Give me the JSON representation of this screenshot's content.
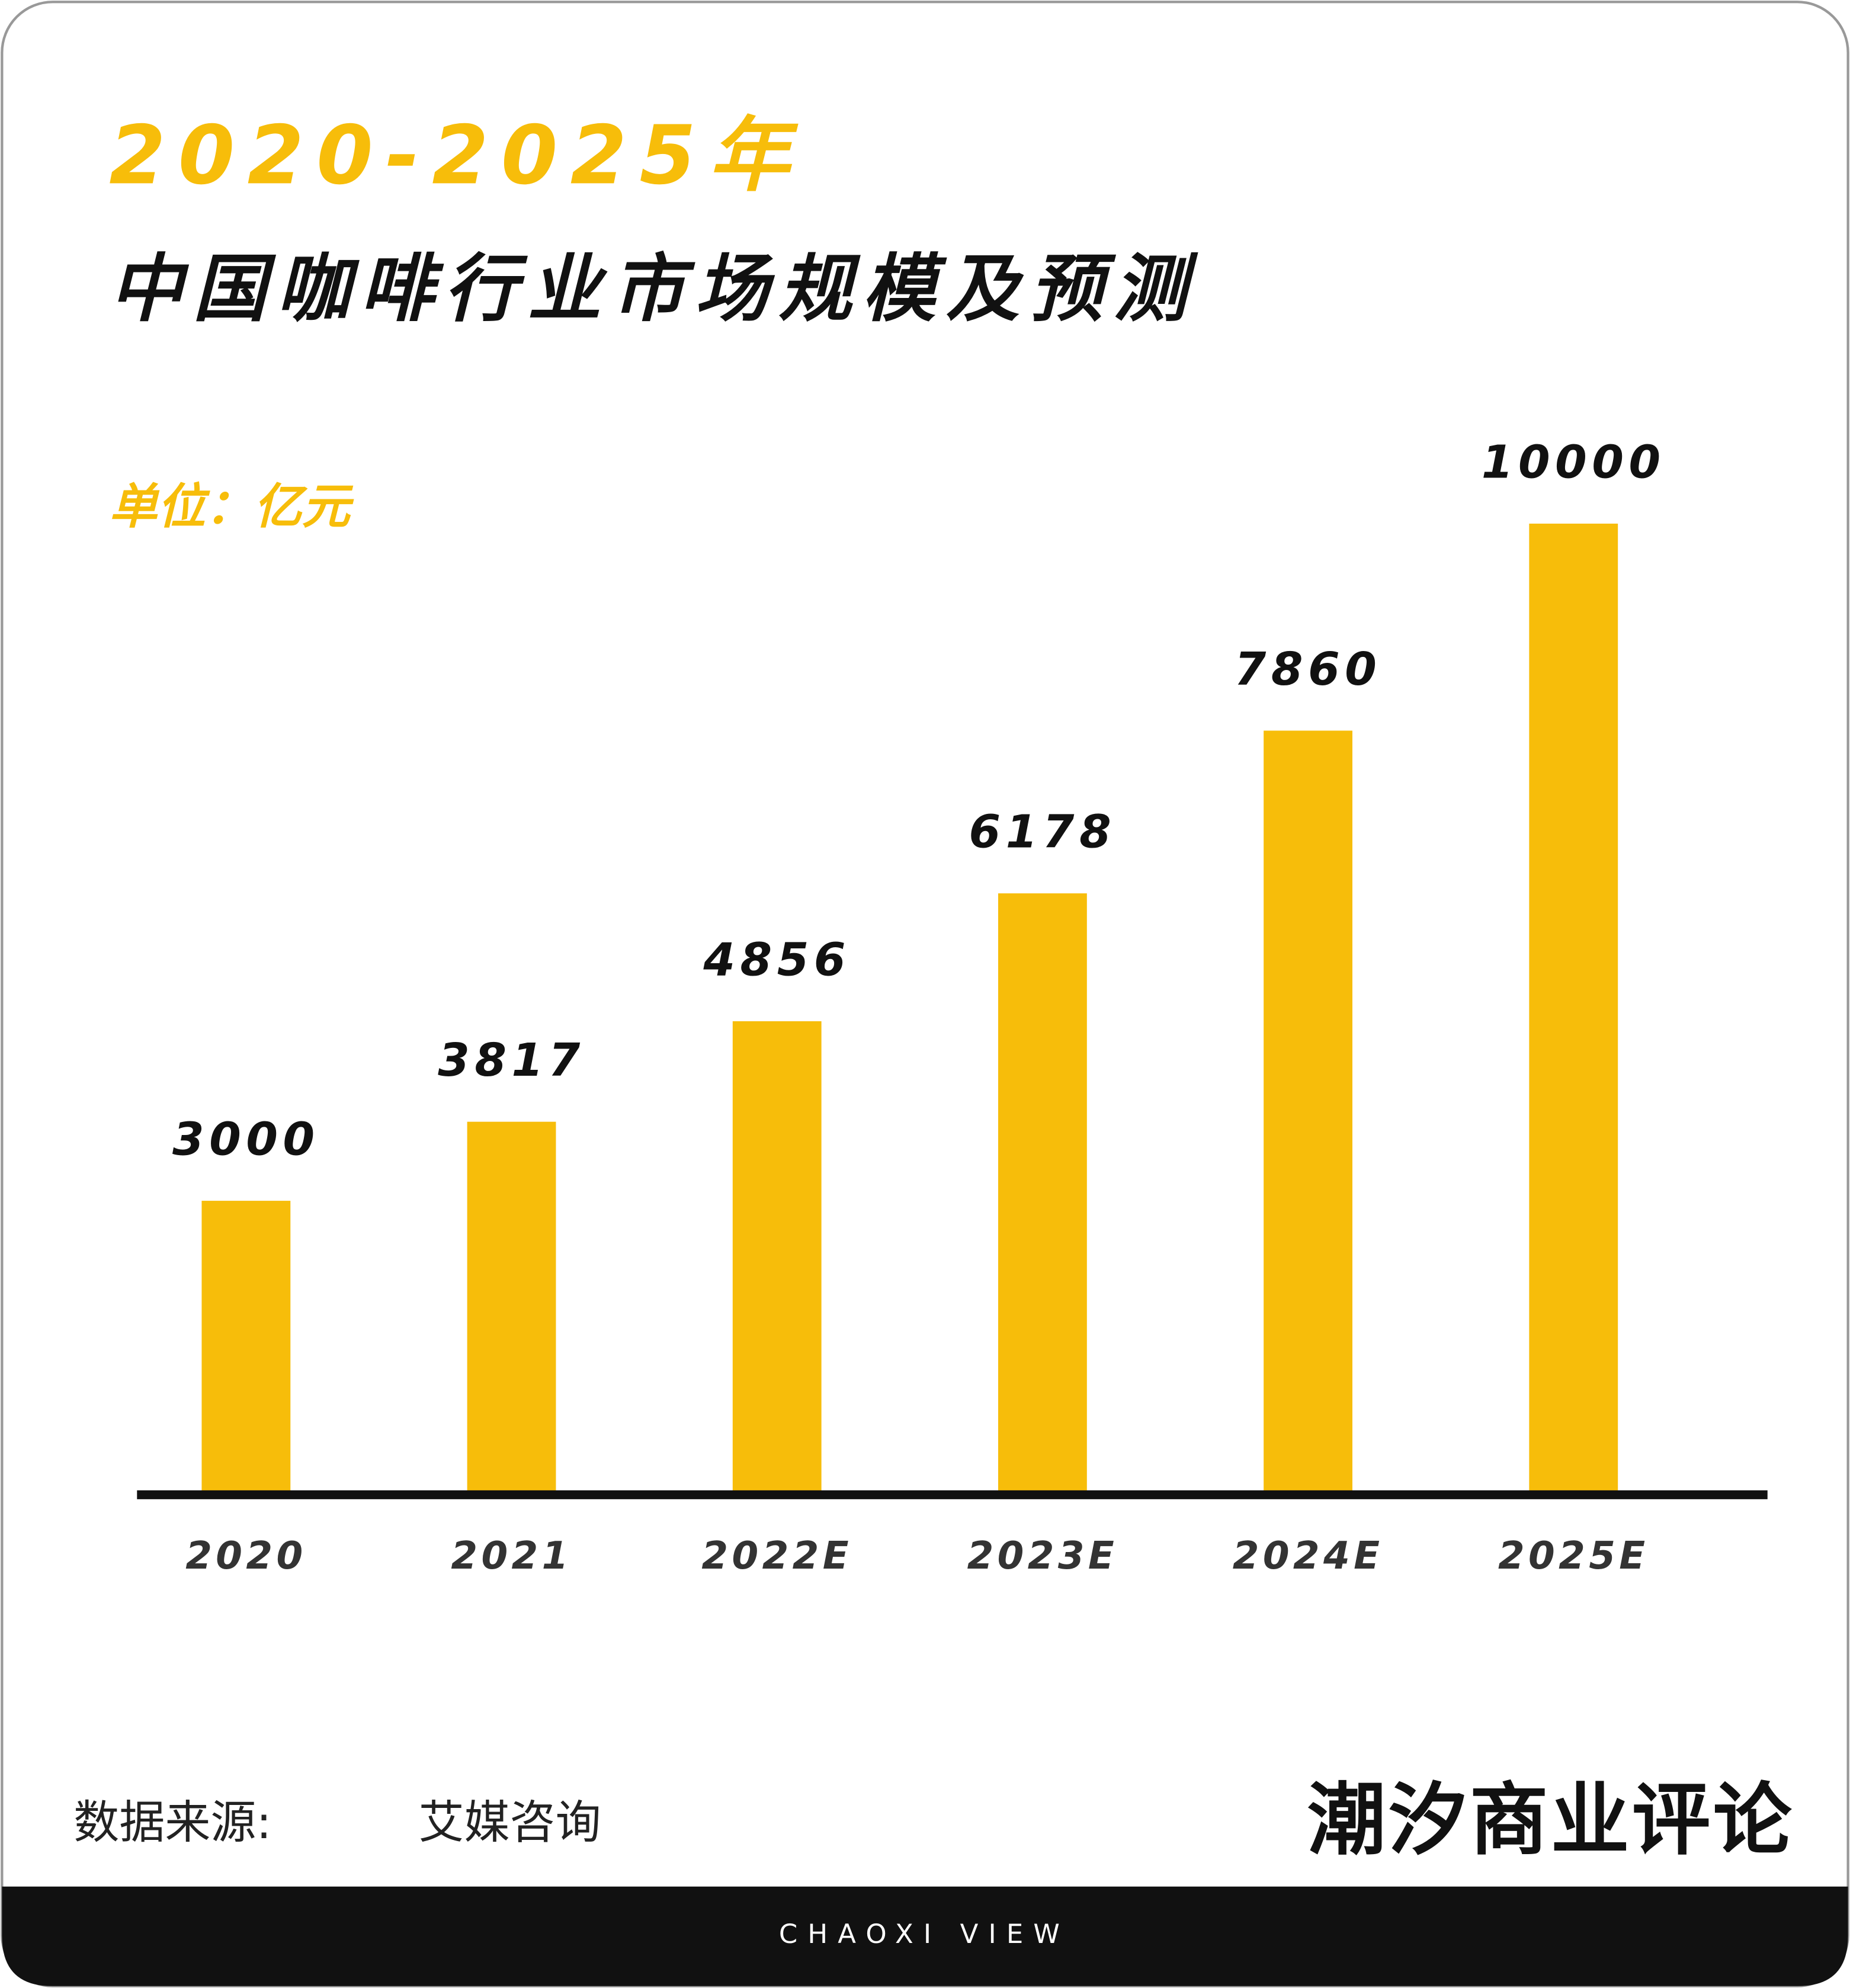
{
  "chart_data": {
    "type": "bar",
    "title": "2020-2025年",
    "subtitle": "中国咖啡行业市场规模及预测",
    "unit_label": "单位：亿元",
    "categories": [
      "2020",
      "2021",
      "2022E",
      "2023E",
      "2024E",
      "2025E"
    ],
    "values": [
      3000,
      3817,
      4856,
      6178,
      7860,
      10000
    ],
    "color": "#f7bd0a",
    "source_label": "数据来源:",
    "source": "艾媒咨询",
    "brand": "潮汐商业评论",
    "brand_sub": "CHAOXI VIEW"
  }
}
